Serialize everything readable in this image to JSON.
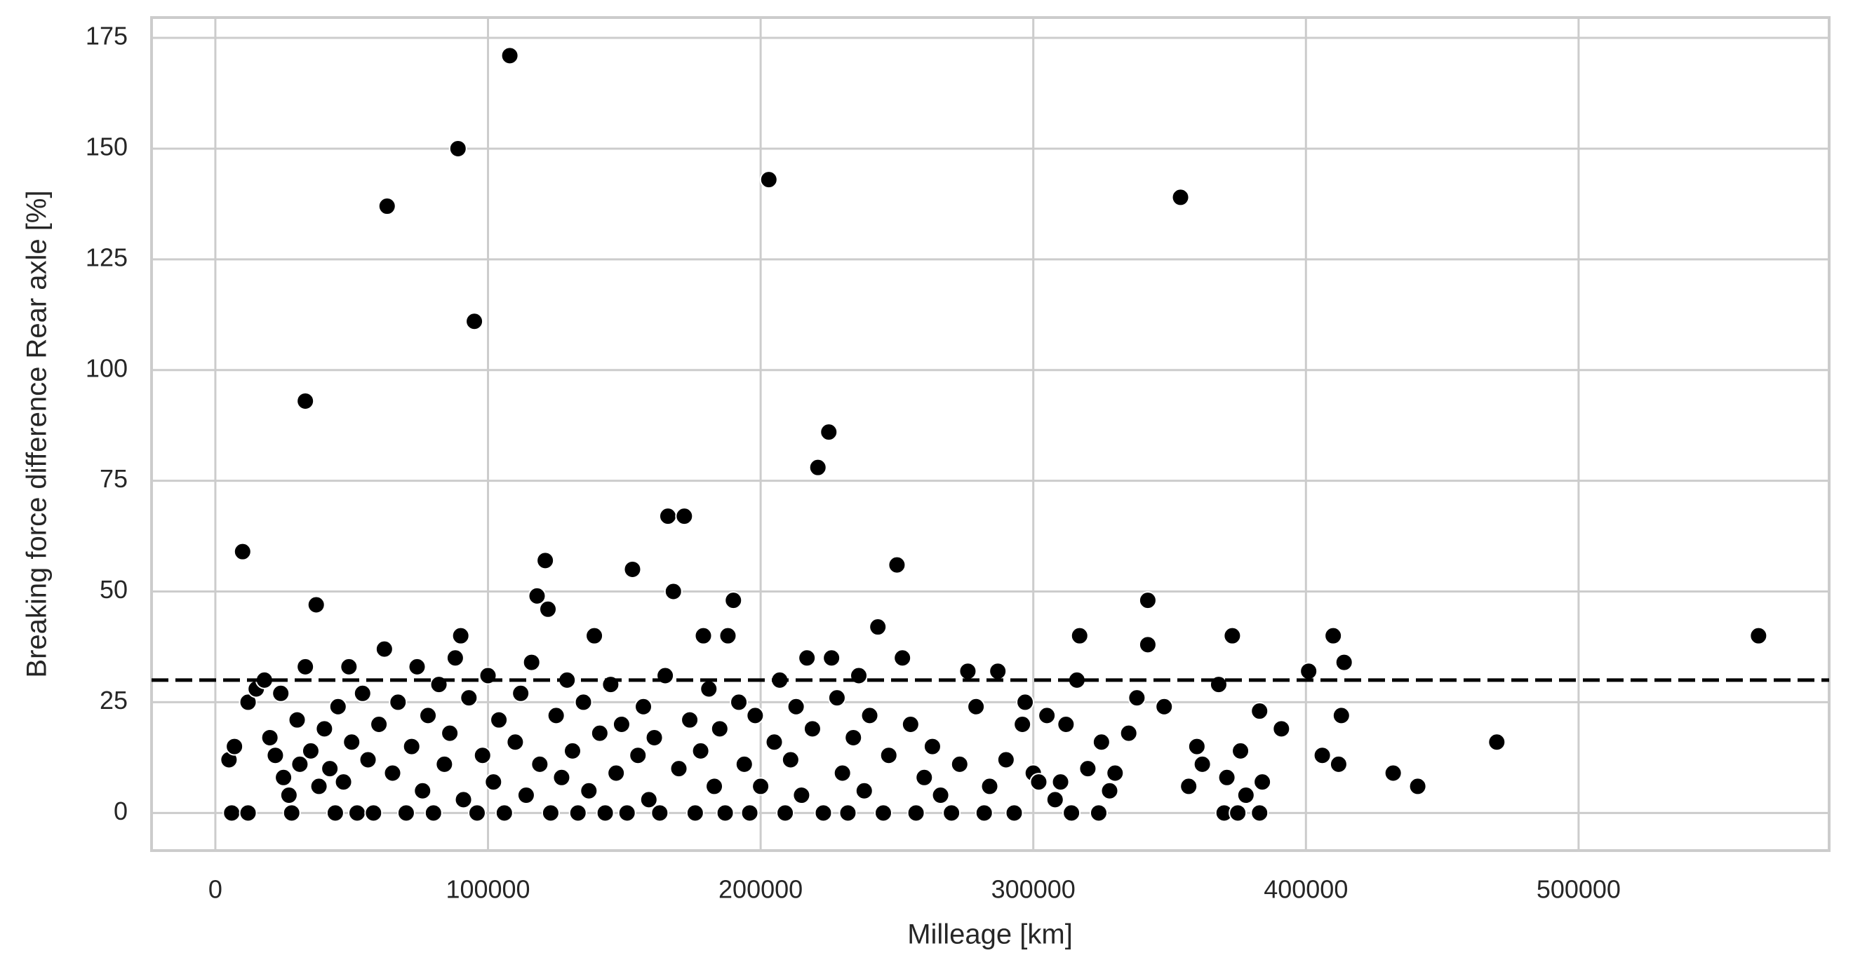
{
  "chart_data": {
    "type": "scatter",
    "xlabel": "Milleage [km]",
    "ylabel": "Breaking force difference Rear axle [%]",
    "xlim": [
      -23400,
      591900
    ],
    "ylim": [
      -8.5,
      179.6
    ],
    "xticks": [
      0,
      100000,
      200000,
      300000,
      400000,
      500000
    ],
    "yticks": [
      0,
      25,
      50,
      75,
      100,
      125,
      150,
      175
    ],
    "grid": true,
    "color": "#000000",
    "hline": 30,
    "x": [
      10000,
      33000,
      37000,
      63000,
      89000,
      95000,
      108000,
      118000,
      121000,
      122000,
      153000,
      166000,
      168000,
      172000,
      190000,
      203000,
      221000,
      225000,
      243000,
      250000,
      317000,
      342000,
      342000,
      354000,
      373000,
      410000,
      401000,
      414000,
      413000,
      406000,
      412000,
      432000,
      441000,
      470000,
      566000,
      391000,
      383000,
      384000,
      376000,
      371000,
      368000,
      360000,
      357000,
      348000,
      338000,
      335000,
      330000,
      325000,
      316000,
      312000,
      305000,
      297000,
      287000,
      276000,
      252000,
      226000,
      217000,
      188000,
      179000,
      139000,
      90000,
      62000,
      33000,
      5000,
      7000,
      12000,
      15000,
      18000,
      24000,
      6000,
      12000,
      20000,
      22000,
      25000,
      27000,
      28000,
      30000,
      31000,
      35000,
      38000,
      40000,
      42000,
      44000,
      45000,
      47000,
      49000,
      50000,
      52000,
      54000,
      56000,
      58000,
      60000,
      65000,
      67000,
      70000,
      72000,
      74000,
      76000,
      78000,
      80000,
      82000,
      84000,
      86000,
      88000,
      91000,
      93000,
      96000,
      98000,
      100000,
      102000,
      104000,
      106000,
      110000,
      112000,
      114000,
      116000,
      119000,
      123000,
      125000,
      127000,
      129000,
      131000,
      133000,
      135000,
      137000,
      141000,
      143000,
      145000,
      147000,
      149000,
      151000,
      155000,
      157000,
      159000,
      161000,
      163000,
      165000,
      170000,
      174000,
      176000,
      178000,
      181000,
      183000,
      185000,
      187000,
      192000,
      194000,
      196000,
      198000,
      200000,
      205000,
      207000,
      209000,
      211000,
      213000,
      215000,
      219000,
      223000,
      228000,
      230000,
      232000,
      234000,
      236000,
      238000,
      240000,
      245000,
      247000,
      255000,
      257000,
      260000,
      263000,
      266000,
      270000,
      273000,
      279000,
      282000,
      284000,
      290000,
      293000,
      296000,
      300000,
      302000,
      308000,
      310000,
      314000,
      320000,
      324000,
      328000,
      362000,
      370000,
      375000,
      378000,
      383000
    ],
    "values": [
      59,
      93,
      47,
      137,
      150,
      111,
      171,
      49,
      57,
      46,
      55,
      67,
      50,
      67,
      48,
      143,
      78,
      86,
      42,
      56,
      40,
      48,
      38,
      139,
      40,
      40,
      32,
      34,
      22,
      13,
      11,
      9,
      6,
      16,
      40,
      19,
      23,
      7,
      14,
      8,
      29,
      15,
      6,
      24,
      26,
      18,
      9,
      16,
      30,
      20,
      22,
      25,
      32,
      32,
      35,
      35,
      35,
      40,
      40,
      40,
      40,
      37,
      33,
      12,
      15,
      25,
      28,
      30,
      27,
      0,
      0,
      17,
      13,
      8,
      4,
      0,
      21,
      11,
      14,
      6,
      19,
      10,
      0,
      24,
      7,
      33,
      16,
      0,
      27,
      12,
      0,
      20,
      9,
      25,
      0,
      15,
      33,
      5,
      22,
      0,
      29,
      11,
      18,
      35,
      3,
      26,
      0,
      13,
      31,
      7,
      21,
      0,
      16,
      27,
      4,
      34,
      11,
      0,
      22,
      8,
      30,
      14,
      0,
      25,
      5,
      18,
      0,
      29,
      9,
      20,
      0,
      13,
      24,
      3,
      17,
      0,
      31,
      10,
      21,
      0,
      14,
      28,
      6,
      19,
      0,
      25,
      11,
      0,
      22,
      6,
      16,
      30,
      0,
      12,
      24,
      4,
      19,
      0,
      26,
      9,
      0,
      17,
      31,
      5,
      22,
      0,
      13,
      20,
      0,
      8,
      15,
      4,
      0,
      11,
      24,
      0,
      6,
      12,
      0,
      20,
      9,
      7,
      3,
      7,
      0,
      10,
      0,
      5,
      11,
      0,
      0,
      4,
      0
    ]
  }
}
